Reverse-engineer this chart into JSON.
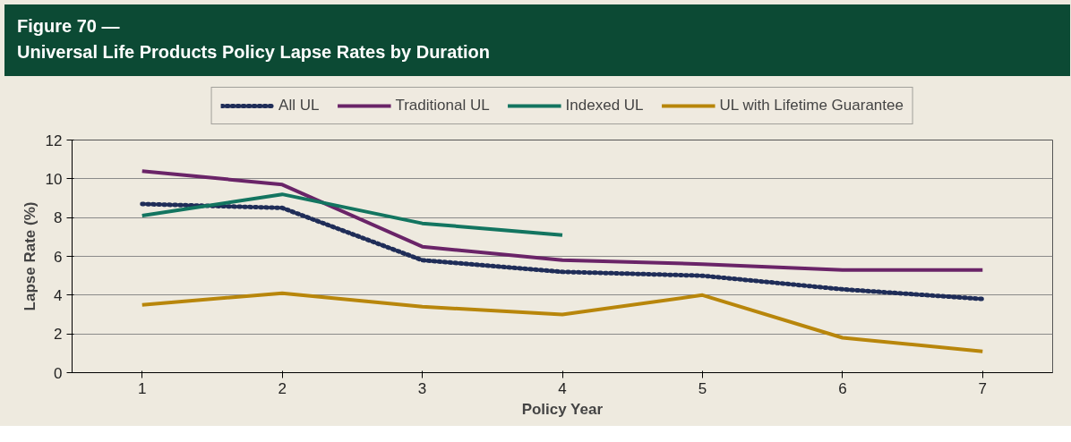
{
  "chart_data": {
    "type": "line",
    "title": "Figure 70 —\nUniversal Life Products Policy Lapse Rates by Duration",
    "xlabel": "Policy Year",
    "ylabel": "Lapse Rate (%)",
    "x": [
      1,
      2,
      3,
      4,
      5,
      6,
      7
    ],
    "xlim": [
      0.5,
      7.5
    ],
    "xticks": [
      1,
      2,
      3,
      4,
      5,
      6,
      7
    ],
    "ylim": [
      0,
      12
    ],
    "yticks": [
      0,
      2,
      4,
      6,
      8,
      10,
      12
    ],
    "grid": "y",
    "legend": "top",
    "marker": "none",
    "series": [
      {
        "name": "All UL",
        "color": "#1f2d58",
        "line_style": "dotted",
        "values": [
          8.7,
          8.5,
          5.8,
          5.2,
          5.0,
          4.3,
          3.8
        ]
      },
      {
        "name": "Traditional UL",
        "color": "#6a2468",
        "line_style": "solid",
        "values": [
          10.4,
          9.7,
          6.5,
          5.8,
          5.6,
          5.3,
          5.3
        ]
      },
      {
        "name": "Indexed UL",
        "color": "#137560",
        "line_style": "solid",
        "values": [
          8.1,
          9.2,
          7.7,
          7.1,
          null,
          null,
          null
        ]
      },
      {
        "name": "UL with Lifetime Guarantee",
        "color": "#b8860b",
        "line_style": "solid",
        "values": [
          3.5,
          4.1,
          3.4,
          3.0,
          4.0,
          1.8,
          1.1
        ]
      }
    ]
  }
}
